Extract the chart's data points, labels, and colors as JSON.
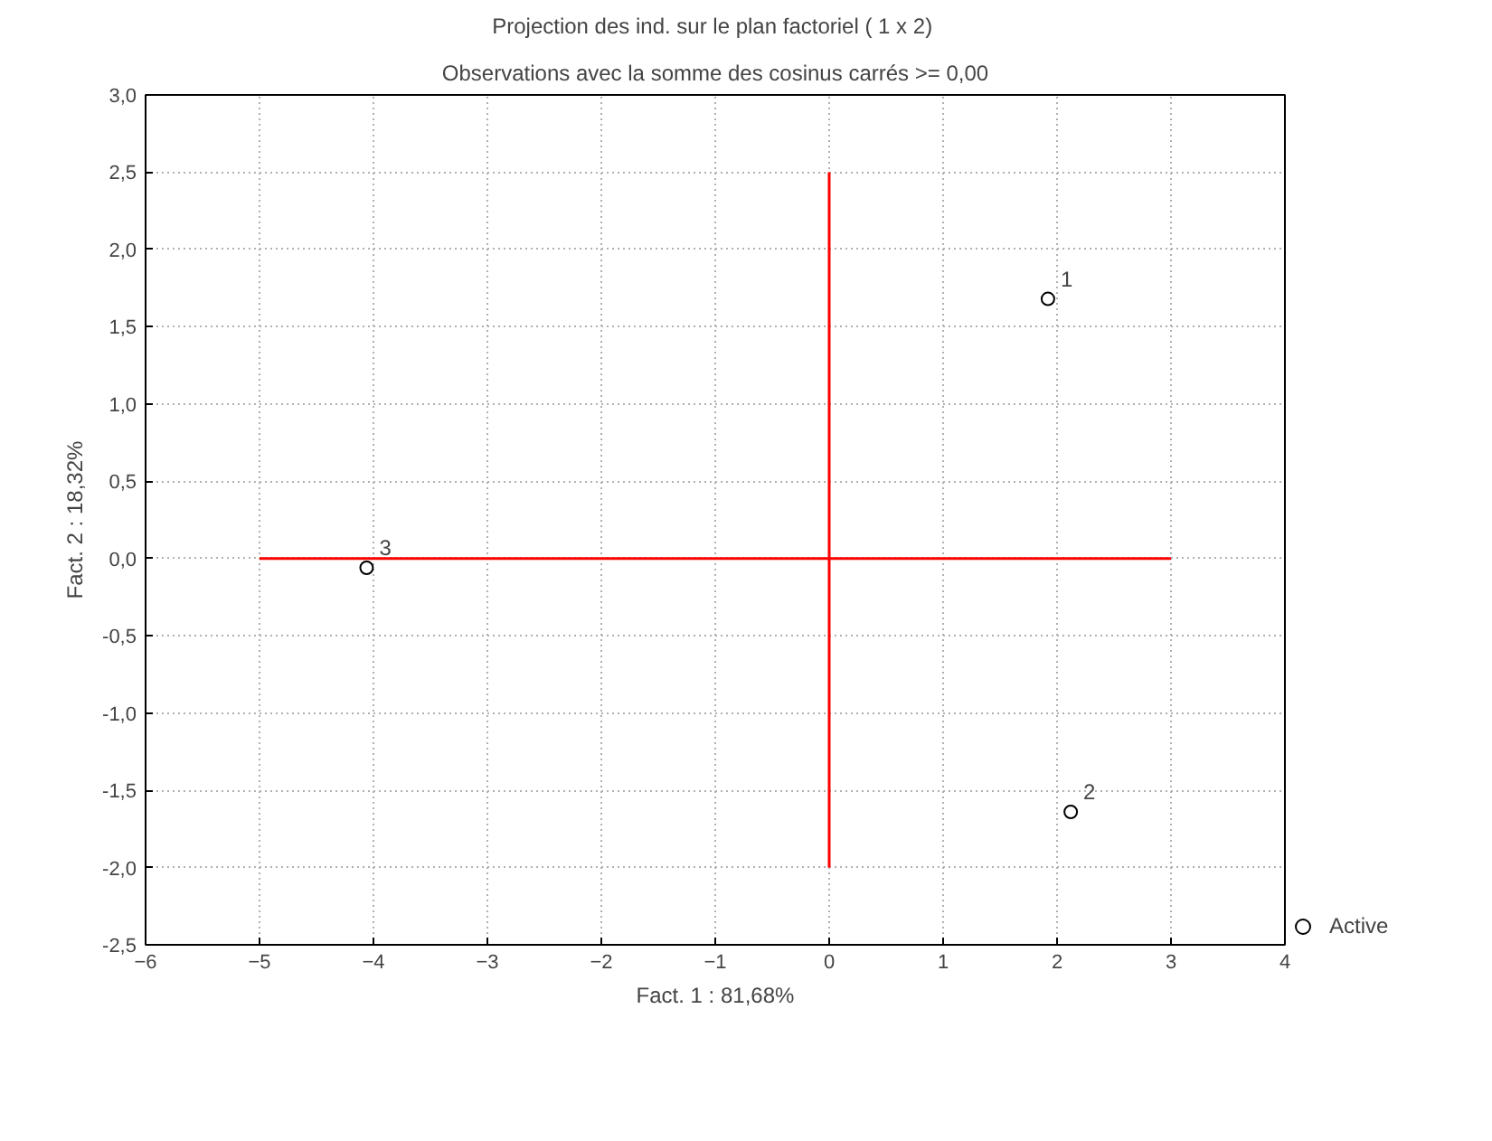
{
  "chart_data": {
    "type": "scatter",
    "title": "Projection des ind. sur le plan factoriel ( 1 x  2)",
    "subtitle": "Observations avec la somme des cosinus carrés >= 0,00",
    "xlabel": "Fact. 1 : 81,68%",
    "ylabel": "Fact. 2 : 18,32%",
    "series": [
      {
        "name": "Active",
        "color": "#000000",
        "x": [
          1.92,
          2.12,
          -4.06
        ],
        "values": [
          1.68,
          -1.64,
          -0.06
        ]
      },
      {
        "type": "line",
        "marker": "none",
        "color": "#ff0000",
        "x": [
          -5,
          3
        ],
        "values": [
          0,
          0
        ]
      },
      {
        "type": "line",
        "marker": "none",
        "color": "#ff0000",
        "x": [
          0,
          0
        ],
        "values": [
          -2,
          2.5
        ]
      }
    ],
    "annotations": [
      {
        "text": "1",
        "x": 1.92,
        "y": 1.68
      },
      {
        "text": "2",
        "x": 2.12,
        "y": -1.64
      },
      {
        "text": "3",
        "x": -4.06,
        "y": -0.06
      }
    ],
    "xlim": [
      -6,
      4
    ],
    "xticks": [
      -6,
      -5,
      -4,
      -3,
      -2,
      -1,
      0,
      1,
      2,
      3,
      4
    ],
    "ylim": [
      -2.5,
      3
    ],
    "yticks": [
      {
        "value": -2.5,
        "label": "-2,5"
      },
      {
        "value": -2,
        "label": "-2,0"
      },
      {
        "value": -1.5,
        "label": "-1,5"
      },
      {
        "value": -1,
        "label": "-1,0"
      },
      {
        "value": -0.5,
        "label": "-0,5"
      },
      {
        "value": 0,
        "label": "0,0"
      },
      {
        "value": 0.5,
        "label": "0,5"
      },
      {
        "value": 1,
        "label": "1,0"
      },
      {
        "value": 1.5,
        "label": "1,5"
      },
      {
        "value": 2,
        "label": "2,0"
      },
      {
        "value": 2.5,
        "label": "2,5"
      },
      {
        "value": 3,
        "label": "3,0"
      }
    ],
    "grid": true,
    "legend": "bottom right",
    "marker": "circle"
  }
}
